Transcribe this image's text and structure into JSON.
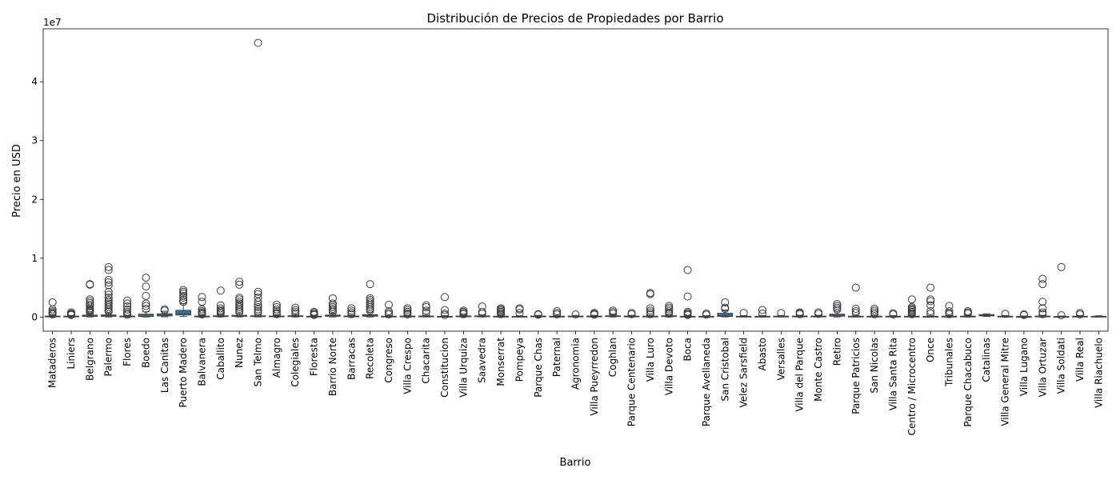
{
  "chart_data": {
    "type": "box",
    "title": "Distribución de Precios de Propiedades por Barrio",
    "xlabel": "Barrio",
    "ylabel": "Precio en USD",
    "y_offset_label": "1e7",
    "ylim": [
      -2400000,
      49000000
    ],
    "y_ticks": [
      0,
      10000000,
      20000000,
      30000000,
      40000000
    ],
    "y_tick_labels": [
      "0",
      "1",
      "2",
      "3",
      "4"
    ],
    "box_color": "#3274a1",
    "grid": false,
    "boxes": [
      {
        "name": "Mataderos",
        "q1": 80000,
        "median": 120000,
        "q3": 170000,
        "whisker_low": 20000,
        "whisker_high": 300000,
        "outliers": [
          2500000,
          1300000,
          1000000,
          800000,
          600000,
          450000
        ]
      },
      {
        "name": "Liniers",
        "q1": 80000,
        "median": 120000,
        "q3": 160000,
        "whisker_low": 20000,
        "whisker_high": 280000,
        "outliers": [
          800000,
          600000,
          450000,
          350000
        ]
      },
      {
        "name": "Belgrano",
        "q1": 120000,
        "median": 200000,
        "q3": 330000,
        "whisker_low": 20000,
        "whisker_high": 650000,
        "outliers": [
          5600000,
          5500000,
          3000000,
          2700000,
          2400000,
          2100000,
          1800000,
          1500000,
          1300000,
          1100000,
          950000,
          800000
        ]
      },
      {
        "name": "Palermo",
        "q1": 130000,
        "median": 210000,
        "q3": 360000,
        "whisker_low": 20000,
        "whisker_high": 700000,
        "outliers": [
          8500000,
          8000000,
          6300000,
          5900000,
          5400000,
          4300000,
          3800000,
          3300000,
          2900000,
          2600000,
          2300000,
          2000000,
          1700000,
          1400000,
          1100000,
          900000
        ]
      },
      {
        "name": "Flores",
        "q1": 80000,
        "median": 120000,
        "q3": 170000,
        "whisker_low": 20000,
        "whisker_high": 300000,
        "outliers": [
          2800000,
          2300000,
          1800000,
          1300000,
          900000,
          600000,
          400000
        ]
      },
      {
        "name": "Boedo",
        "q1": 100000,
        "median": 180000,
        "q3": 500000,
        "whisker_low": 20000,
        "whisker_high": 900000,
        "outliers": [
          6700000,
          5200000,
          3600000,
          2300000,
          1900000,
          1400000
        ]
      },
      {
        "name": "Las Canitas",
        "q1": 200000,
        "median": 320000,
        "q3": 550000,
        "whisker_low": 50000,
        "whisker_high": 1000000,
        "outliers": [
          1300000,
          1100000
        ]
      },
      {
        "name": "Puerto Madero",
        "q1": 350000,
        "median": 600000,
        "q3": 1150000,
        "whisker_low": 100000,
        "whisker_high": 2300000,
        "outliers": [
          4600000,
          4300000,
          4000000,
          3600000,
          3300000,
          2900000,
          2600000
        ]
      },
      {
        "name": "Balvanera",
        "q1": 70000,
        "median": 110000,
        "q3": 160000,
        "whisker_low": 20000,
        "whisker_high": 300000,
        "outliers": [
          3400000,
          2600000,
          1300000,
          1000000,
          800000,
          600000,
          450000
        ]
      },
      {
        "name": "Caballito",
        "q1": 100000,
        "median": 150000,
        "q3": 220000,
        "whisker_low": 20000,
        "whisker_high": 400000,
        "outliers": [
          4500000,
          2000000,
          1500000,
          1200000,
          1000000,
          800000,
          600000
        ]
      },
      {
        "name": "Nunez",
        "q1": 120000,
        "median": 190000,
        "q3": 300000,
        "whisker_low": 20000,
        "whisker_high": 600000,
        "outliers": [
          6000000,
          5500000,
          3300000,
          3000000,
          2600000,
          2300000,
          2000000,
          1700000,
          1400000,
          1100000,
          850000
        ]
      },
      {
        "name": "San Telmo",
        "q1": 90000,
        "median": 140000,
        "q3": 220000,
        "whisker_low": 20000,
        "whisker_high": 400000,
        "outliers": [
          46600000,
          4300000,
          3900000,
          3300000,
          2600000,
          2100000,
          1700000,
          1300000,
          1000000,
          700000
        ]
      },
      {
        "name": "Almagro",
        "q1": 80000,
        "median": 120000,
        "q3": 180000,
        "whisker_low": 20000,
        "whisker_high": 320000,
        "outliers": [
          2100000,
          1700000,
          1300000,
          1000000,
          700000,
          500000
        ]
      },
      {
        "name": "Colegiales",
        "q1": 100000,
        "median": 150000,
        "q3": 230000,
        "whisker_low": 20000,
        "whisker_high": 420000,
        "outliers": [
          1600000,
          1200000,
          900000,
          600000
        ]
      },
      {
        "name": "Floresta",
        "q1": 70000,
        "median": 100000,
        "q3": 150000,
        "whisker_low": 20000,
        "whisker_high": 270000,
        "outliers": [
          900000,
          700000,
          500000,
          350000
        ]
      },
      {
        "name": "Barrio Norte",
        "q1": 130000,
        "median": 200000,
        "q3": 340000,
        "whisker_low": 20000,
        "whisker_high": 650000,
        "outliers": [
          3200000,
          2300000,
          2000000,
          1700000,
          1400000,
          1100000,
          850000
        ]
      },
      {
        "name": "Barracas",
        "q1": 80000,
        "median": 120000,
        "q3": 180000,
        "whisker_low": 20000,
        "whisker_high": 320000,
        "outliers": [
          1500000,
          1100000,
          800000,
          500000
        ]
      },
      {
        "name": "Recoleta",
        "q1": 140000,
        "median": 230000,
        "q3": 420000,
        "whisker_low": 20000,
        "whisker_high": 800000,
        "outliers": [
          5600000,
          3200000,
          2900000,
          2600000,
          2300000,
          2000000,
          1700000,
          1400000,
          1100000
        ]
      },
      {
        "name": "Congreso",
        "q1": 70000,
        "median": 100000,
        "q3": 150000,
        "whisker_low": 20000,
        "whisker_high": 270000,
        "outliers": [
          2100000,
          1000000,
          700000,
          450000
        ]
      },
      {
        "name": "Villa Crespo",
        "q1": 80000,
        "median": 120000,
        "q3": 170000,
        "whisker_low": 20000,
        "whisker_high": 300000,
        "outliers": [
          1500000,
          1200000,
          900000,
          650000,
          450000
        ]
      },
      {
        "name": "Chacarita",
        "q1": 80000,
        "median": 120000,
        "q3": 180000,
        "whisker_low": 20000,
        "whisker_high": 320000,
        "outliers": [
          2000000,
          1700000,
          1100000,
          700000
        ]
      },
      {
        "name": "Constitucion",
        "q1": 60000,
        "median": 90000,
        "q3": 130000,
        "whisker_low": 10000,
        "whisker_high": 240000,
        "outliers": [
          3400000,
          1200000,
          600000,
          350000
        ]
      },
      {
        "name": "Villa Urquiza",
        "q1": 90000,
        "median": 130000,
        "q3": 190000,
        "whisker_low": 20000,
        "whisker_high": 340000,
        "outliers": [
          1100000,
          900000,
          700000,
          500000
        ]
      },
      {
        "name": "Saavedra",
        "q1": 90000,
        "median": 140000,
        "q3": 200000,
        "whisker_low": 20000,
        "whisker_high": 360000,
        "outliers": [
          1800000,
          900000,
          600000
        ]
      },
      {
        "name": "Monserrat",
        "q1": 70000,
        "median": 100000,
        "q3": 150000,
        "whisker_low": 20000,
        "whisker_high": 270000,
        "outliers": [
          1500000,
          1300000,
          1100000,
          900000,
          700000,
          500000
        ]
      },
      {
        "name": "Pompeya",
        "q1": 60000,
        "median": 90000,
        "q3": 130000,
        "whisker_low": 20000,
        "whisker_high": 230000,
        "outliers": [
          1500000,
          1300000,
          700000
        ]
      },
      {
        "name": "Parque Chas",
        "q1": 90000,
        "median": 130000,
        "q3": 180000,
        "whisker_low": 30000,
        "whisker_high": 300000,
        "outliers": [
          500000,
          400000
        ]
      },
      {
        "name": "Paternal",
        "q1": 70000,
        "median": 100000,
        "q3": 150000,
        "whisker_low": 20000,
        "whisker_high": 270000,
        "outliers": [
          1000000,
          700000,
          450000
        ]
      },
      {
        "name": "Agronomia",
        "q1": 80000,
        "median": 120000,
        "q3": 170000,
        "whisker_low": 30000,
        "whisker_high": 280000,
        "outliers": [
          450000
        ]
      },
      {
        "name": "Villa Pueyrredon",
        "q1": 80000,
        "median": 120000,
        "q3": 170000,
        "whisker_low": 20000,
        "whisker_high": 300000,
        "outliers": [
          700000,
          550000,
          400000
        ]
      },
      {
        "name": "Coghlan",
        "q1": 100000,
        "median": 150000,
        "q3": 220000,
        "whisker_low": 30000,
        "whisker_high": 400000,
        "outliers": [
          1100000,
          850000,
          600000
        ]
      },
      {
        "name": "Parque Centenario",
        "q1": 80000,
        "median": 120000,
        "q3": 170000,
        "whisker_low": 20000,
        "whisker_high": 300000,
        "outliers": [
          700000,
          500000
        ]
      },
      {
        "name": "Villa Luro",
        "q1": 70000,
        "median": 110000,
        "q3": 160000,
        "whisker_low": 20000,
        "whisker_high": 280000,
        "outliers": [
          4100000,
          3900000,
          1500000,
          1100000,
          800000,
          500000
        ]
      },
      {
        "name": "Villa Devoto",
        "q1": 100000,
        "median": 150000,
        "q3": 220000,
        "whisker_low": 20000,
        "whisker_high": 400000,
        "outliers": [
          1900000,
          1600000,
          1300000,
          1000000,
          750000,
          550000
        ]
      },
      {
        "name": "Boca",
        "q1": 60000,
        "median": 90000,
        "q3": 130000,
        "whisker_low": 20000,
        "whisker_high": 230000,
        "outliers": [
          8000000,
          3500000,
          900000,
          700000,
          500000,
          350000
        ]
      },
      {
        "name": "Parque Avellaneda",
        "q1": 60000,
        "median": 90000,
        "q3": 130000,
        "whisker_low": 20000,
        "whisker_high": 230000,
        "outliers": [
          600000,
          400000
        ]
      },
      {
        "name": "San Cristobal",
        "q1": 120000,
        "median": 250000,
        "q3": 650000,
        "whisker_low": 20000,
        "whisker_high": 1200000,
        "outliers": [
          2500000,
          1600000,
          1400000
        ]
      },
      {
        "name": "Velez Sarsfield",
        "q1": 70000,
        "median": 100000,
        "q3": 140000,
        "whisker_low": 20000,
        "whisker_high": 250000,
        "outliers": [
          700000
        ]
      },
      {
        "name": "Abasto",
        "q1": 70000,
        "median": 100000,
        "q3": 140000,
        "whisker_low": 20000,
        "whisker_high": 250000,
        "outliers": [
          1200000,
          600000
        ]
      },
      {
        "name": "Versalles",
        "q1": 80000,
        "median": 120000,
        "q3": 160000,
        "whisker_low": 20000,
        "whisker_high": 280000,
        "outliers": [
          700000
        ]
      },
      {
        "name": "Villa del Parque",
        "q1": 90000,
        "median": 130000,
        "q3": 180000,
        "whisker_low": 20000,
        "whisker_high": 320000,
        "outliers": [
          800000,
          650000,
          500000
        ]
      },
      {
        "name": "Monte Castro",
        "q1": 80000,
        "median": 120000,
        "q3": 170000,
        "whisker_low": 20000,
        "whisker_high": 300000,
        "outliers": [
          800000,
          550000
        ]
      },
      {
        "name": "Retiro",
        "q1": 150000,
        "median": 270000,
        "q3": 500000,
        "whisker_low": 20000,
        "whisker_high": 1000000,
        "outliers": [
          2200000,
          1900000,
          1600000,
          1300000
        ]
      },
      {
        "name": "Parque Patricios",
        "q1": 70000,
        "median": 100000,
        "q3": 150000,
        "whisker_low": 20000,
        "whisker_high": 270000,
        "outliers": [
          5000000,
          1400000,
          1000000,
          700000
        ]
      },
      {
        "name": "San Nicolas",
        "q1": 70000,
        "median": 100000,
        "q3": 150000,
        "whisker_low": 20000,
        "whisker_high": 270000,
        "outliers": [
          1400000,
          1100000,
          800000,
          500000
        ]
      },
      {
        "name": "Villa Santa Rita",
        "q1": 80000,
        "median": 110000,
        "q3": 150000,
        "whisker_low": 20000,
        "whisker_high": 260000,
        "outliers": [
          650000,
          450000
        ]
      },
      {
        "name": "Centro / Microcentro",
        "q1": 70000,
        "median": 100000,
        "q3": 150000,
        "whisker_low": 20000,
        "whisker_high": 270000,
        "outliers": [
          3000000,
          1700000,
          1500000,
          1300000,
          1100000,
          900000,
          700000,
          500000
        ]
      },
      {
        "name": "Once",
        "q1": 60000,
        "median": 90000,
        "q3": 130000,
        "whisker_low": 20000,
        "whisker_high": 230000,
        "outliers": [
          5000000,
          3000000,
          2700000,
          2000000,
          1000000,
          600000
        ]
      },
      {
        "name": "Tribunales",
        "q1": 70000,
        "median": 100000,
        "q3": 150000,
        "whisker_low": 20000,
        "whisker_high": 270000,
        "outliers": [
          1900000,
          1000000,
          700000,
          500000
        ]
      },
      {
        "name": "Parque Chacabuco",
        "q1": 80000,
        "median": 110000,
        "q3": 160000,
        "whisker_low": 20000,
        "whisker_high": 280000,
        "outliers": [
          1000000,
          800000,
          600000
        ]
      },
      {
        "name": "Catalinas",
        "q1": 200000,
        "median": 300000,
        "q3": 420000,
        "whisker_low": 100000,
        "whisker_high": 550000,
        "outliers": []
      },
      {
        "name": "Villa General Mitre",
        "q1": 80000,
        "median": 110000,
        "q3": 150000,
        "whisker_low": 20000,
        "whisker_high": 260000,
        "outliers": [
          550000
        ]
      },
      {
        "name": "Villa Lugano",
        "q1": 50000,
        "median": 70000,
        "q3": 100000,
        "whisker_low": 10000,
        "whisker_high": 180000,
        "outliers": [
          450000,
          350000
        ]
      },
      {
        "name": "Villa Ortuzar",
        "q1": 80000,
        "median": 120000,
        "q3": 170000,
        "whisker_low": 20000,
        "whisker_high": 300000,
        "outliers": [
          6500000,
          5600000,
          2600000,
          1500000,
          800000,
          500000
        ]
      },
      {
        "name": "Villa Soldati",
        "q1": 50000,
        "median": 70000,
        "q3": 100000,
        "whisker_low": 10000,
        "whisker_high": 180000,
        "outliers": [
          8500000,
          300000
        ]
      },
      {
        "name": "Villa Real",
        "q1": 80000,
        "median": 110000,
        "q3": 150000,
        "whisker_low": 20000,
        "whisker_high": 260000,
        "outliers": [
          700000,
          450000
        ]
      },
      {
        "name": "Villa Riachuelo",
        "q1": 60000,
        "median": 90000,
        "q3": 130000,
        "whisker_low": 20000,
        "whisker_high": 220000,
        "outliers": []
      }
    ]
  }
}
